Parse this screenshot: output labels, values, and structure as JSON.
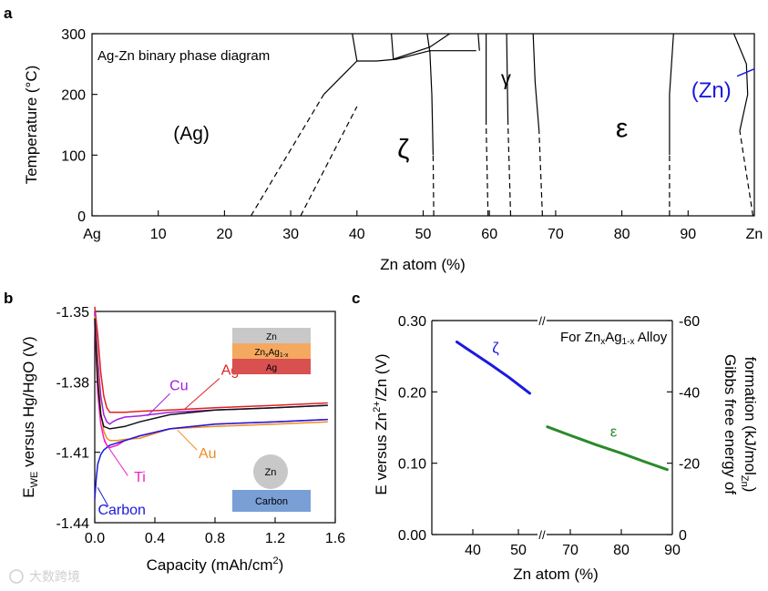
{
  "panels": {
    "a": "a",
    "b": "b",
    "c": "c"
  },
  "watermark": "大数跨境",
  "chart_data": [
    {
      "id": "a",
      "type": "line",
      "title": "Ag-Zn binary phase diagram",
      "xlabel": "Zn atom (%)",
      "ylabel": "Temperature (°C)",
      "xlim": [
        0,
        100
      ],
      "ylim": [
        0,
        300
      ],
      "xticks": [
        0,
        10,
        20,
        30,
        40,
        50,
        60,
        70,
        80,
        90,
        100
      ],
      "xtick_labels": [
        "Ag",
        "10",
        "20",
        "30",
        "40",
        "50",
        "60",
        "70",
        "80",
        "90",
        "Zn"
      ],
      "yticks": [
        0,
        100,
        200,
        300
      ],
      "ytick_labels": [
        "0",
        "100",
        "200",
        "300"
      ],
      "phase_labels": [
        {
          "name": "(Ag)",
          "x": 15,
          "y": 125
        },
        {
          "name": "ζ",
          "x": 47,
          "y": 95
        },
        {
          "name": "γ",
          "x": 62.5,
          "y": 215
        },
        {
          "name": "ε",
          "x": 80,
          "y": 130
        },
        {
          "name": "(Zn)",
          "x": 93.5,
          "y": 195,
          "color": "#1a1adc"
        }
      ],
      "lines": [
        {
          "style": "solid",
          "x": [
            40,
            43,
            46,
            51,
            58
          ],
          "y": [
            255,
            255,
            258,
            272,
            272
          ]
        },
        {
          "style": "solid",
          "x": [
            35,
            40
          ],
          "y": [
            200,
            255
          ]
        },
        {
          "style": "solid",
          "x": [
            40,
            39.3
          ],
          "y": [
            255,
            300
          ]
        },
        {
          "style": "solid",
          "x": [
            45.5,
            45.2
          ],
          "y": [
            258,
            300
          ]
        },
        {
          "style": "solid",
          "x": [
            45.5,
            51,
            54
          ],
          "y": [
            258,
            278,
            300
          ]
        },
        {
          "style": "solid",
          "x": [
            51,
            50.6
          ],
          "y": [
            270,
            300
          ]
        },
        {
          "style": "solid",
          "x": [
            58.5,
            58.3
          ],
          "y": [
            272,
            300
          ]
        },
        {
          "style": "solid",
          "x": [
            51.5,
            51.3,
            51.0
          ],
          "y": [
            100,
            200,
            272
          ]
        },
        {
          "style": "solid",
          "x": [
            59.5,
            59.5
          ],
          "y": [
            150,
            300
          ]
        },
        {
          "style": "solid",
          "x": [
            62.8,
            62.6
          ],
          "y": [
            150,
            300
          ]
        },
        {
          "style": "solid",
          "x": [
            67.5,
            66.9,
            66.6
          ],
          "y": [
            140,
            220,
            300
          ]
        },
        {
          "style": "solid",
          "x": [
            87.2,
            87.2,
            87.8
          ],
          "y": [
            100,
            200,
            300
          ]
        },
        {
          "style": "solid",
          "x": [
            97.8,
            99.0,
            98.8,
            96.9
          ],
          "y": [
            140,
            200,
            250,
            300
          ]
        },
        {
          "style": "dash",
          "x": [
            24,
            35
          ],
          "y": [
            0,
            200
          ]
        },
        {
          "style": "dash",
          "x": [
            31.5,
            40
          ],
          "y": [
            0,
            180
          ]
        },
        {
          "style": "dash",
          "x": [
            51.6,
            51.5
          ],
          "y": [
            0,
            100
          ]
        },
        {
          "style": "dash",
          "x": [
            59.8,
            59.5
          ],
          "y": [
            0,
            150
          ]
        },
        {
          "style": "dash",
          "x": [
            63.2,
            62.8
          ],
          "y": [
            0,
            150
          ]
        },
        {
          "style": "dash",
          "x": [
            68.0,
            67.5
          ],
          "y": [
            0,
            140
          ]
        },
        {
          "style": "dash",
          "x": [
            87.2,
            87.2
          ],
          "y": [
            0,
            100
          ]
        },
        {
          "style": "dash",
          "x": [
            99.8,
            97.8
          ],
          "y": [
            0,
            140
          ]
        },
        {
          "style": "pointer",
          "color": "#1a1adc",
          "x": [
            97.4,
            100
          ],
          "y": [
            230,
            242
          ]
        }
      ]
    },
    {
      "id": "b",
      "type": "line",
      "xlabel": "Capacity (mAh/cm",
      "xlabel_sup": "2",
      "xlabel_end": ")",
      "ylabel_main": "E",
      "ylabel_sub": "WE",
      "ylabel_rest": " versus Hg/HgO (V)",
      "xlim": [
        0,
        1.6
      ],
      "ylim": [
        -1.44,
        -1.35
      ],
      "xticks": [
        0,
        0.4,
        0.8,
        1.2,
        1.6
      ],
      "xtick_labels": [
        "0.0",
        "0.4",
        "0.8",
        "1.2",
        "1.6"
      ],
      "yticks": [
        -1.35,
        -1.38,
        -1.41,
        -1.44
      ],
      "ytick_labels": [
        "-1.35",
        "-1.38",
        "-1.41",
        "-1.44"
      ],
      "series": [
        {
          "name": "Ag",
          "color": "#e02020",
          "label_x": 0.9,
          "label_y": -1.377,
          "x": [
            0,
            0.02,
            0.04,
            0.06,
            0.08,
            0.1,
            0.12,
            0.15,
            0.2,
            0.3,
            0.5,
            0.8,
            1.2,
            1.55
          ],
          "y": [
            -1.348,
            -1.36,
            -1.376,
            -1.386,
            -1.391,
            -1.393,
            -1.393,
            -1.393,
            -1.393,
            -1.3925,
            -1.392,
            -1.391,
            -1.39,
            -1.389
          ]
        },
        {
          "name": "Cu",
          "color": "#a020e0",
          "label_x": 0.56,
          "label_y": -1.3835,
          "x": [
            0,
            0.02,
            0.04,
            0.06,
            0.08,
            0.1,
            0.12,
            0.15,
            0.2,
            0.3,
            0.5,
            0.8,
            1.2,
            1.55
          ],
          "y": [
            -1.35,
            -1.37,
            -1.386,
            -1.394,
            -1.397,
            -1.398,
            -1.397,
            -1.396,
            -1.395,
            -1.3945,
            -1.393,
            -1.392,
            -1.391,
            -1.39
          ]
        },
        {
          "name": "Au",
          "color": "#f08c20",
          "label_x": 0.75,
          "label_y": -1.4125,
          "x": [
            0,
            0.02,
            0.04,
            0.06,
            0.08,
            0.1,
            0.15,
            0.2,
            0.3,
            0.4,
            0.5,
            0.8,
            1.2,
            1.55
          ],
          "y": [
            -1.352,
            -1.375,
            -1.393,
            -1.401,
            -1.404,
            -1.405,
            -1.405,
            -1.4045,
            -1.404,
            -1.402,
            -1.4,
            -1.399,
            -1.398,
            -1.397
          ]
        },
        {
          "name": "Ti",
          "color": "#f020c8",
          "label_x": 0.3,
          "label_y": -1.4225,
          "x": [
            0,
            0.02,
            0.04,
            0.06,
            0.08,
            0.1,
            0.15,
            0.2,
            0.3,
            0.5,
            0.8,
            1.2,
            1.55
          ],
          "y": [
            -1.355,
            -1.385,
            -1.398,
            -1.404,
            -1.407,
            -1.408,
            -1.407,
            -1.405,
            -1.403,
            -1.4,
            -1.398,
            -1.397,
            -1.396
          ]
        },
        {
          "name": "Carbon",
          "color": "#1a1adc",
          "label_x": 0.18,
          "label_y": -1.4365,
          "x": [
            0,
            0.01,
            0.02,
            0.04,
            0.06,
            0.08,
            0.1,
            0.15,
            0.2,
            0.3,
            0.5,
            0.8,
            1.2,
            1.55
          ],
          "y": [
            -1.43,
            -1.421,
            -1.415,
            -1.411,
            -1.409,
            -1.408,
            -1.407,
            -1.406,
            -1.405,
            -1.403,
            -1.4,
            -1.398,
            -1.397,
            -1.396
          ]
        },
        {
          "name": "Black",
          "color": "#111111",
          "label_x": null,
          "label_y": null,
          "x": [
            0,
            0.02,
            0.04,
            0.06,
            0.1,
            0.2,
            0.3,
            0.5,
            0.8,
            1.2,
            1.55
          ],
          "y": [
            -1.353,
            -1.38,
            -1.394,
            -1.399,
            -1.4,
            -1.399,
            -1.397,
            -1.394,
            -1.392,
            -1.391,
            -1.39
          ]
        }
      ],
      "inset_layers": [
        {
          "label": "Zn",
          "color": "#c8c8c8"
        },
        {
          "label_main": "Zn",
          "label_sub1": "x",
          "label_mid": "Ag",
          "label_sub2": "1-x",
          "color": "#f5a860"
        },
        {
          "label": "Ag",
          "color": "#d85050"
        }
      ],
      "inset_sphere": {
        "label": "Zn",
        "color": "#c8c8c8"
      },
      "inset_substrate": {
        "label": "Carbon",
        "color": "#7a9fd6"
      }
    },
    {
      "id": "c",
      "type": "line",
      "xlabel": "Zn atom (%)",
      "ylabel_left_main": "E versus Zn",
      "ylabel_left_sup": "2+",
      "ylabel_left_rest": "/Zn (V)",
      "ylabel_right_1": "Gibbs free energy of",
      "ylabel_right_2_main": "formation (kJ/mol",
      "ylabel_right_2_sub": "Zn",
      "ylabel_right_2_end": ")",
      "legend_main": "For Zn",
      "legend_sub1": "x",
      "legend_mid": "Ag",
      "legend_sub2": "1-x",
      "legend_end": " Alloy",
      "break_symbol": "//",
      "left_ylim": [
        0,
        0.3
      ],
      "left_yticks": [
        0,
        0.1,
        0.2,
        0.3
      ],
      "left_ytick_labels": [
        "0.00",
        "0.10",
        "0.20",
        "0.30"
      ],
      "right_ylim": [
        0,
        -60
      ],
      "right_yticks": [
        0,
        -20,
        -40,
        -60
      ],
      "right_ytick_labels": [
        "0",
        "-20",
        "-40",
        "-60"
      ],
      "x_segments": [
        {
          "xlim": [
            35,
            55
          ],
          "ticks": [
            40,
            50
          ],
          "tick_labels": [
            "40",
            "50"
          ]
        },
        {
          "xlim": [
            65,
            90
          ],
          "ticks": [
            70,
            80,
            90
          ],
          "tick_labels": [
            "70",
            "80",
            "90"
          ]
        }
      ],
      "series": [
        {
          "name": "ζ",
          "color": "#1a1adc",
          "segment": 0,
          "label_x": 45,
          "label_y": 0.255,
          "x": [
            36.5,
            40,
            44,
            48,
            52.5
          ],
          "y": [
            0.27,
            0.255,
            0.238,
            0.22,
            0.198
          ]
        },
        {
          "name": "ε",
          "color": "#2a8a2a",
          "segment": 1,
          "label_x": 78.5,
          "label_y": 0.137,
          "x": [
            65.5,
            70,
            75,
            80,
            85,
            89
          ],
          "y": [
            0.151,
            0.139,
            0.126,
            0.114,
            0.101,
            0.091
          ]
        }
      ]
    }
  ]
}
